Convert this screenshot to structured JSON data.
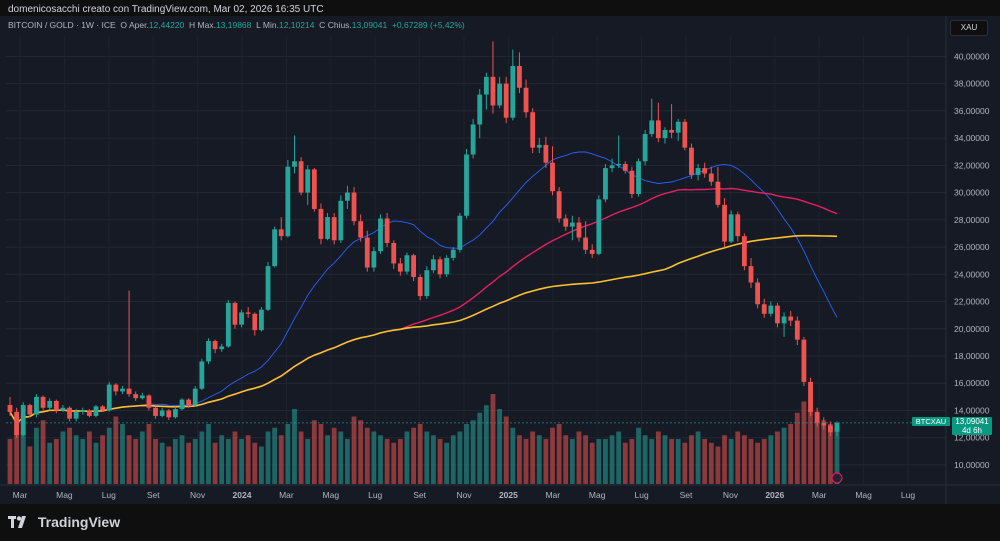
{
  "header": {
    "credit": "domenicosacchi creato con TradingView.com, Mar 02, 2026 16:35 UTC"
  },
  "legend": {
    "symbol": "BITCOIN / GOLD · 1W · ICE",
    "open_label": "O",
    "open_text": "Aper.",
    "open_value": "12,44220",
    "high_label": "H",
    "high_text": "Max.",
    "high_value": "13,19868",
    "low_label": "L",
    "low_text": "Min.",
    "low_value": "12,10214",
    "close_label": "C",
    "close_text": "Chius.",
    "close_value": "13,09041",
    "change": "+0,67289 (+5,42%)"
  },
  "unit_button": "XAU",
  "price_tag": {
    "symbol": "BTCXAU",
    "price": "13,09041",
    "countdown": "4d 6h"
  },
  "footer": {
    "brand": "TradingView"
  },
  "colors": {
    "up": "#26a69a",
    "down": "#ef5350",
    "ma_fast": "#2962ff",
    "ma_mid": "#e91e63",
    "ma_slow": "#fbc02d"
  },
  "chart_data": {
    "type": "candlestick",
    "timeframe": "1W",
    "y_ticks": [
      "40,00000",
      "38,00000",
      "36,00000",
      "34,00000",
      "32,00000",
      "30,00000",
      "28,00000",
      "26,00000",
      "24,00000",
      "22,00000",
      "20,00000",
      "18,00000",
      "16,00000",
      "14,00000",
      "12,00000",
      "10,00000"
    ],
    "y_range": [
      8.6,
      41.5
    ],
    "x_ticks": [
      "Mar",
      "Mag",
      "Lug",
      "Set",
      "Nov",
      "2024",
      "Mar",
      "Mag",
      "Lug",
      "Set",
      "Nov",
      "2025",
      "Mar",
      "Mag",
      "Lug",
      "Set",
      "Nov",
      "2026",
      "Mar",
      "Mag",
      "Lug"
    ],
    "x_tick_bold": [
      false,
      false,
      false,
      false,
      false,
      true,
      false,
      false,
      false,
      false,
      false,
      true,
      false,
      false,
      false,
      false,
      false,
      true,
      false,
      false,
      false
    ],
    "candles": [
      [
        14.4,
        15.0,
        13.6,
        13.9
      ],
      [
        13.9,
        14.2,
        12.0,
        12.2
      ],
      [
        12.2,
        14.6,
        12.1,
        14.4
      ],
      [
        14.4,
        14.5,
        13.5,
        13.7
      ],
      [
        13.7,
        15.2,
        13.5,
        15.0
      ],
      [
        15.0,
        15.1,
        14.0,
        14.2
      ],
      [
        14.2,
        14.9,
        14.0,
        14.7
      ],
      [
        14.7,
        14.8,
        13.8,
        14.0
      ],
      [
        14.0,
        14.4,
        13.9,
        14.2
      ],
      [
        14.2,
        14.3,
        13.2,
        13.4
      ],
      [
        13.4,
        14.1,
        13.2,
        13.9
      ],
      [
        13.9,
        14.2,
        13.7,
        14.0
      ],
      [
        14.0,
        14.1,
        13.5,
        13.6
      ],
      [
        13.6,
        14.4,
        13.5,
        14.3
      ],
      [
        14.3,
        14.4,
        13.9,
        14.0
      ],
      [
        14.0,
        16.1,
        13.9,
        15.9
      ],
      [
        15.9,
        16.0,
        15.1,
        15.4
      ],
      [
        15.4,
        15.8,
        15.2,
        15.6
      ],
      [
        15.6,
        22.8,
        15.0,
        15.2
      ],
      [
        15.2,
        15.4,
        14.7,
        14.9
      ],
      [
        14.9,
        15.3,
        14.8,
        15.1
      ],
      [
        15.1,
        15.2,
        14.0,
        14.2
      ],
      [
        14.2,
        14.3,
        13.4,
        13.6
      ],
      [
        13.6,
        14.2,
        13.5,
        14.0
      ],
      [
        14.0,
        14.1,
        13.3,
        13.5
      ],
      [
        13.5,
        14.3,
        13.4,
        14.1
      ],
      [
        14.1,
        14.9,
        14.0,
        14.8
      ],
      [
        14.8,
        14.9,
        14.2,
        14.4
      ],
      [
        14.4,
        15.8,
        14.3,
        15.6
      ],
      [
        15.6,
        17.8,
        15.5,
        17.6
      ],
      [
        17.6,
        19.3,
        17.4,
        19.1
      ],
      [
        19.1,
        19.2,
        18.2,
        18.5
      ],
      [
        18.5,
        18.9,
        18.3,
        18.7
      ],
      [
        18.7,
        22.1,
        18.6,
        21.9
      ],
      [
        21.9,
        22.0,
        20.0,
        20.3
      ],
      [
        20.3,
        21.4,
        20.1,
        21.2
      ],
      [
        21.2,
        21.6,
        20.8,
        21.1
      ],
      [
        21.1,
        21.2,
        19.5,
        19.9
      ],
      [
        19.9,
        21.6,
        19.8,
        21.4
      ],
      [
        21.4,
        24.9,
        21.3,
        24.6
      ],
      [
        24.6,
        27.5,
        24.5,
        27.3
      ],
      [
        27.3,
        28.2,
        26.5,
        26.8
      ],
      [
        26.8,
        32.4,
        26.7,
        31.9
      ],
      [
        31.9,
        34.2,
        31.4,
        32.3
      ],
      [
        32.3,
        32.6,
        29.8,
        30.0
      ],
      [
        30.0,
        32.0,
        29.1,
        31.7
      ],
      [
        31.7,
        31.8,
        28.6,
        28.8
      ],
      [
        28.8,
        29.2,
        26.2,
        26.6
      ],
      [
        26.6,
        28.5,
        26.5,
        28.2
      ],
      [
        28.2,
        28.5,
        26.2,
        26.5
      ],
      [
        26.5,
        29.8,
        26.3,
        29.4
      ],
      [
        29.4,
        30.5,
        28.8,
        30.0
      ],
      [
        30.0,
        30.4,
        27.6,
        27.9
      ],
      [
        27.9,
        28.4,
        26.4,
        26.7
      ],
      [
        26.7,
        27.2,
        24.2,
        24.5
      ],
      [
        24.5,
        26.0,
        24.2,
        25.7
      ],
      [
        25.7,
        28.4,
        25.5,
        28.1
      ],
      [
        28.1,
        28.5,
        26.0,
        26.3
      ],
      [
        26.3,
        26.5,
        24.4,
        24.8
      ],
      [
        24.8,
        25.2,
        23.9,
        24.2
      ],
      [
        24.2,
        25.6,
        24.0,
        25.4
      ],
      [
        25.4,
        25.5,
        23.5,
        23.8
      ],
      [
        23.8,
        24.0,
        22.1,
        22.4
      ],
      [
        22.4,
        24.6,
        22.2,
        24.3
      ],
      [
        24.3,
        25.4,
        24.1,
        25.1
      ],
      [
        25.1,
        25.3,
        23.7,
        24.0
      ],
      [
        24.0,
        25.4,
        23.8,
        25.2
      ],
      [
        25.2,
        26.0,
        25.0,
        25.8
      ],
      [
        25.8,
        28.5,
        25.6,
        28.3
      ],
      [
        28.3,
        33.2,
        28.1,
        32.8
      ],
      [
        32.8,
        35.4,
        32.5,
        35.0
      ],
      [
        35.0,
        37.6,
        34.0,
        37.2
      ],
      [
        37.2,
        38.8,
        36.1,
        38.5
      ],
      [
        38.5,
        41.1,
        35.8,
        36.4
      ],
      [
        36.4,
        38.5,
        36.2,
        38.0
      ],
      [
        38.0,
        38.5,
        35.1,
        35.5
      ],
      [
        35.5,
        40.5,
        35.3,
        39.3
      ],
      [
        39.3,
        40.3,
        37.3,
        37.7
      ],
      [
        37.7,
        38.3,
        35.5,
        35.9
      ],
      [
        35.9,
        36.2,
        32.9,
        33.3
      ],
      [
        33.3,
        34.0,
        32.9,
        33.5
      ],
      [
        33.5,
        34.1,
        31.8,
        32.2
      ],
      [
        32.2,
        33.4,
        29.8,
        30.1
      ],
      [
        30.1,
        30.4,
        27.8,
        28.1
      ],
      [
        28.1,
        28.4,
        27.2,
        27.5
      ],
      [
        27.5,
        28.3,
        26.5,
        27.8
      ],
      [
        27.8,
        28.2,
        26.4,
        26.7
      ],
      [
        26.7,
        27.9,
        25.5,
        25.8
      ],
      [
        25.8,
        26.2,
        25.2,
        25.5
      ],
      [
        25.5,
        29.8,
        25.4,
        29.5
      ],
      [
        29.5,
        32.1,
        29.3,
        31.8
      ],
      [
        31.8,
        32.5,
        31.5,
        32.0
      ],
      [
        32.0,
        34.2,
        31.8,
        32.1
      ],
      [
        32.1,
        32.3,
        31.4,
        31.6
      ],
      [
        31.6,
        31.9,
        29.6,
        29.9
      ],
      [
        29.9,
        32.5,
        29.7,
        32.3
      ],
      [
        32.3,
        34.6,
        32.0,
        34.3
      ],
      [
        34.3,
        36.9,
        34.1,
        35.3
      ],
      [
        35.3,
        36.6,
        33.7,
        34.0
      ],
      [
        34.0,
        34.8,
        33.6,
        34.6
      ],
      [
        34.6,
        36.5,
        34.0,
        34.4
      ],
      [
        34.4,
        35.4,
        33.8,
        35.2
      ],
      [
        35.2,
        35.4,
        33.1,
        33.3
      ],
      [
        33.3,
        33.6,
        31.0,
        31.3
      ],
      [
        31.3,
        32.1,
        30.9,
        31.8
      ],
      [
        31.8,
        32.2,
        31.1,
        31.4
      ],
      [
        31.4,
        31.9,
        30.5,
        30.8
      ],
      [
        30.8,
        31.9,
        28.9,
        29.1
      ],
      [
        29.1,
        29.6,
        26.0,
        26.4
      ],
      [
        26.4,
        28.7,
        26.3,
        28.4
      ],
      [
        28.4,
        28.6,
        26.4,
        26.8
      ],
      [
        26.8,
        27.0,
        24.3,
        24.6
      ],
      [
        24.6,
        25.2,
        23.0,
        23.4
      ],
      [
        23.4,
        23.7,
        21.5,
        21.8
      ],
      [
        21.8,
        22.2,
        20.8,
        21.1
      ],
      [
        21.1,
        22.0,
        20.9,
        21.7
      ],
      [
        21.7,
        21.9,
        20.1,
        20.4
      ],
      [
        20.4,
        21.2,
        19.4,
        20.9
      ],
      [
        20.9,
        21.3,
        20.2,
        20.6
      ],
      [
        20.6,
        20.9,
        18.8,
        19.2
      ],
      [
        19.2,
        19.4,
        15.8,
        16.1
      ],
      [
        16.1,
        16.4,
        13.6,
        13.9
      ],
      [
        13.9,
        14.2,
        12.8,
        13.1
      ],
      [
        13.1,
        13.5,
        12.6,
        12.9
      ],
      [
        12.9,
        13.2,
        12.1,
        12.4
      ],
      [
        12.44,
        13.2,
        12.1,
        13.09
      ]
    ],
    "volume": [
      12,
      18,
      14,
      10,
      15,
      17,
      11,
      12,
      14,
      15,
      13,
      12,
      14,
      11,
      13,
      15,
      18,
      16,
      13,
      12,
      14,
      16,
      12,
      11,
      10,
      12,
      13,
      11,
      12,
      14,
      16,
      11,
      13,
      12,
      14,
      12,
      13,
      11,
      10,
      14,
      15,
      13,
      16,
      20,
      14,
      12,
      17,
      16,
      13,
      15,
      14,
      12,
      18,
      17,
      15,
      14,
      13,
      12,
      11,
      12,
      14,
      15,
      16,
      14,
      13,
      12,
      11,
      13,
      14,
      16,
      17,
      19,
      21,
      24,
      20,
      18,
      15,
      13,
      12,
      14,
      13,
      12,
      15,
      16,
      13,
      12,
      14,
      13,
      11,
      12,
      12,
      13,
      14,
      11,
      12,
      15,
      13,
      12,
      14,
      13,
      12,
      12,
      11,
      13,
      14,
      12,
      11,
      10,
      13,
      12,
      14,
      13,
      12,
      11,
      12,
      13,
      14,
      15,
      16,
      19,
      22,
      20,
      18,
      17,
      16,
      15
    ],
    "volume_colors_by_candle": true
  }
}
